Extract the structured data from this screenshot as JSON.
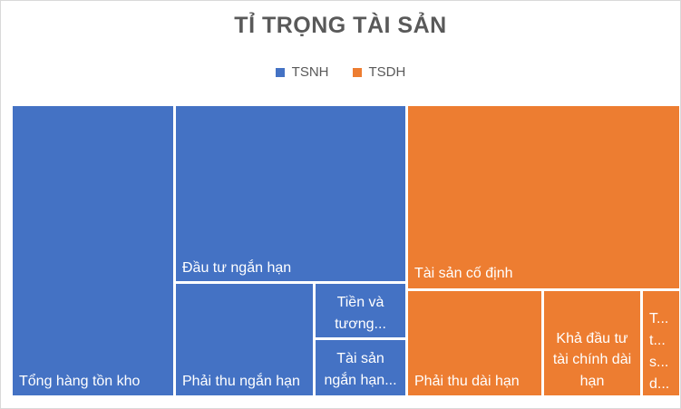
{
  "chart_data": {
    "type": "treemap",
    "title": "TỈ TRỌNG TÀI SẢN",
    "legend": {
      "position": "top",
      "entries": [
        {
          "name": "TSNH",
          "color": "#4472c4"
        },
        {
          "name": "TSDH",
          "color": "#ed7d31"
        }
      ]
    },
    "series": [
      {
        "name": "TSNH",
        "color": "#4472c4",
        "items": [
          {
            "label": "Tổng hàng tồn kho",
            "value": 18
          },
          {
            "label": "Đầu tư ngắn hạn",
            "value": 16.5
          },
          {
            "label": "Phải thu ngắn hạn",
            "value": 8.2
          },
          {
            "label": "Tiền và tương...",
            "value": 3.1
          },
          {
            "label": "Tài sản ngắn hạn...",
            "value": 3.2
          }
        ]
      },
      {
        "name": "TSDH",
        "color": "#ed7d31",
        "items": [
          {
            "label": "Tài sản cố định",
            "value": 18
          },
          {
            "label": "Phải thu dài hạn",
            "value": 8.8
          },
          {
            "label": "Khả đầu tư tài chính dài hạn",
            "value": 6
          },
          {
            "label": "T... t... s... d...",
            "value": 2
          }
        ]
      }
    ]
  }
}
